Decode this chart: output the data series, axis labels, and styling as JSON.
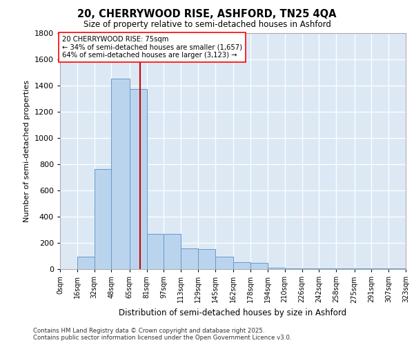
{
  "title_line1": "20, CHERRYWOOD RISE, ASHFORD, TN25 4QA",
  "title_line2": "Size of property relative to semi-detached houses in Ashford",
  "xlabel": "Distribution of semi-detached houses by size in Ashford",
  "ylabel": "Number of semi-detached properties",
  "annotation_line1": "20 CHERRYWOOD RISE: 75sqm",
  "annotation_line2": "← 34% of semi-detached houses are smaller (1,657)",
  "annotation_line3": "64% of semi-detached houses are larger (3,123) →",
  "property_size_sqm": 75,
  "bin_edges": [
    0,
    16,
    32,
    48,
    65,
    81,
    97,
    113,
    129,
    145,
    162,
    178,
    194,
    210,
    226,
    242,
    258,
    275,
    291,
    307,
    323
  ],
  "bar_heights": [
    2,
    95,
    760,
    1450,
    1370,
    270,
    270,
    160,
    155,
    95,
    50,
    45,
    10,
    5,
    5,
    3,
    3,
    3,
    3,
    3
  ],
  "bar_color": "#bad4ed",
  "bar_edge_color": "#6699cc",
  "property_line_color": "#cc0000",
  "background_color": "#dce9f5",
  "grid_color": "#ffffff",
  "ylim": [
    0,
    1800
  ],
  "yticks": [
    0,
    200,
    400,
    600,
    800,
    1000,
    1200,
    1400,
    1600,
    1800
  ],
  "footer_line1": "Contains HM Land Registry data © Crown copyright and database right 2025.",
  "footer_line2": "Contains public sector information licensed under the Open Government Licence v3.0."
}
